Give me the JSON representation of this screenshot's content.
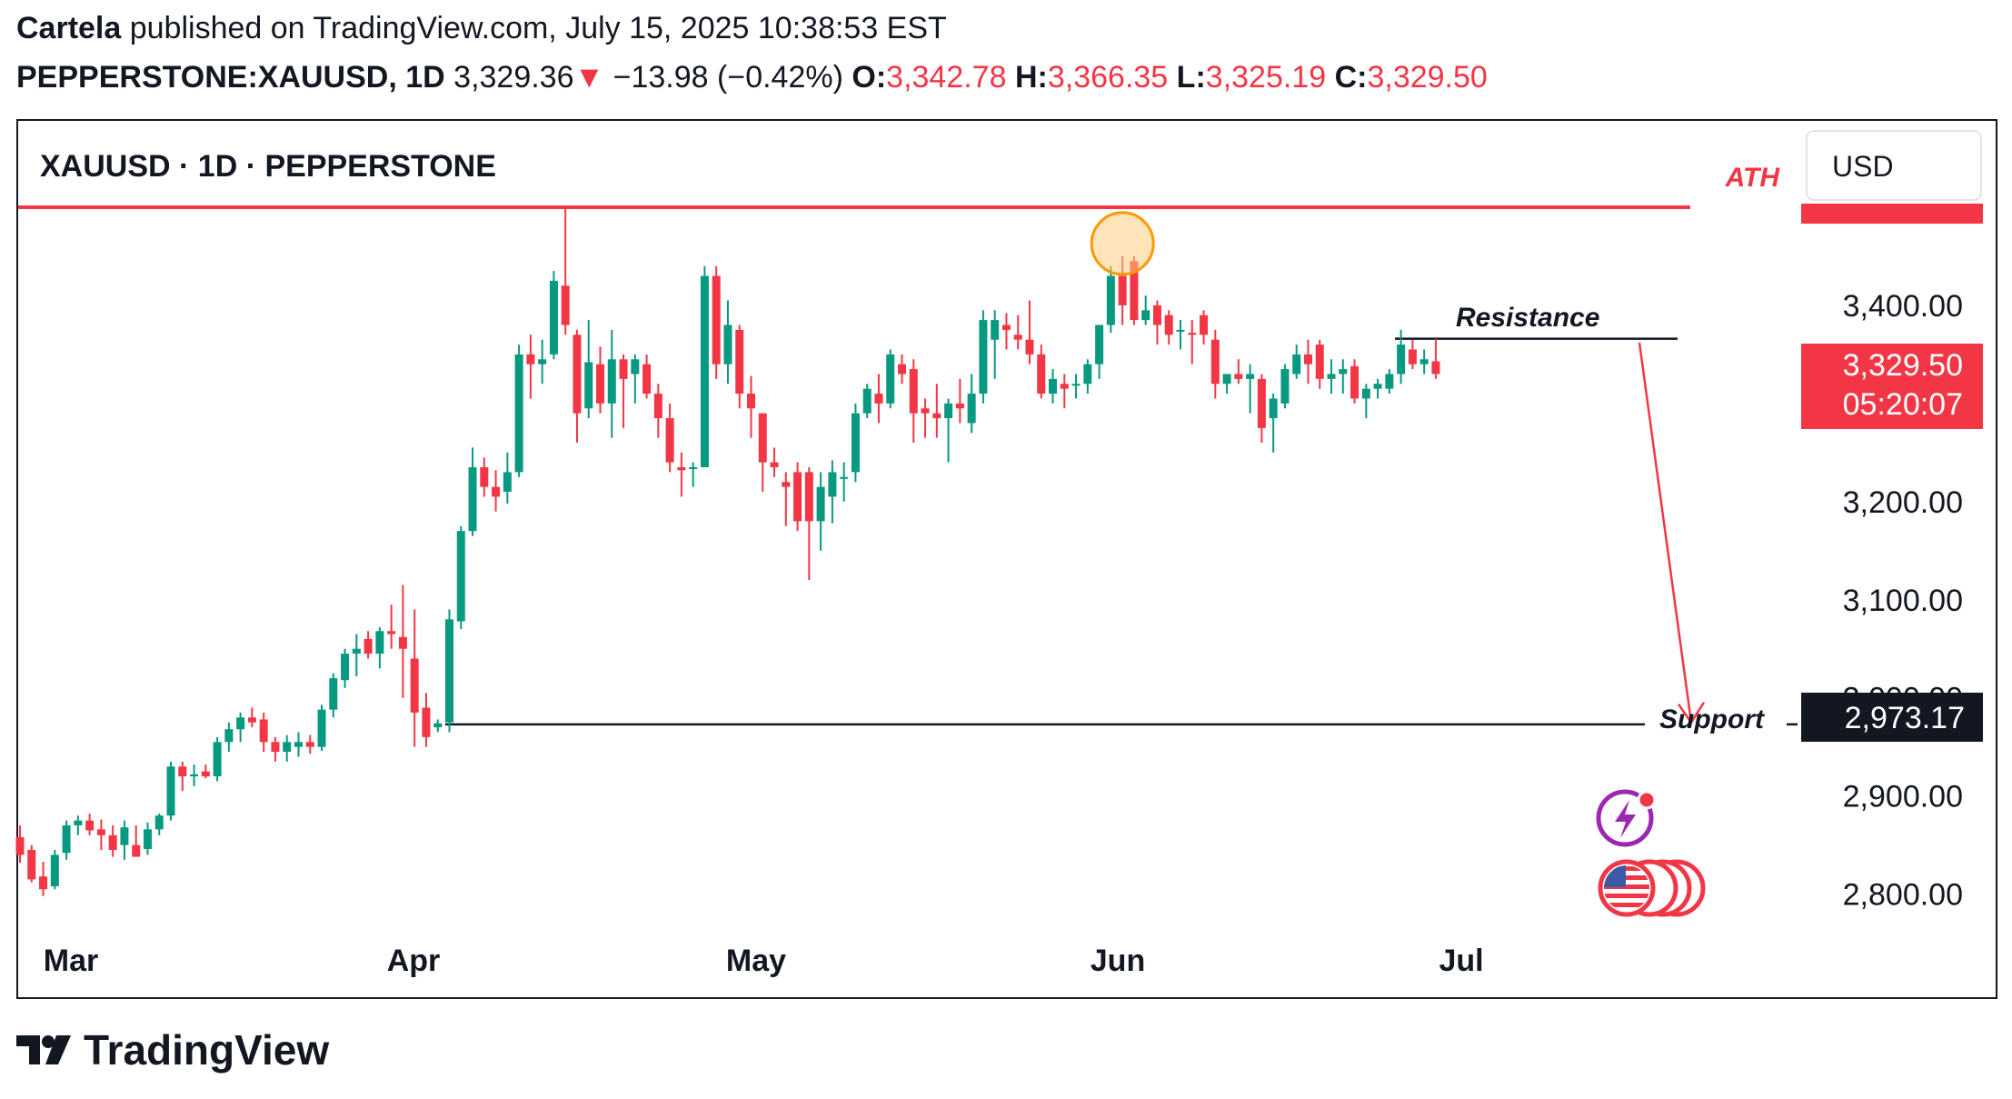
{
  "header": {
    "author": "Cartela",
    "published_text": "published on TradingView.com, July 15, 2025 10:38:53 EST",
    "symbol_tf": "PEPPERSTONE:XAUUSD, 1D",
    "last_price": "3,329.36",
    "change_arrow": "▼",
    "change": "−13.98 (−0.42%)",
    "o_label": "O:",
    "o_value": "3,342.78",
    "h_label": "H:",
    "h_value": "3,366.35",
    "l_label": "L:",
    "l_value": "3,325.19",
    "c_label": "C:",
    "c_value": "3,329.50"
  },
  "chart_title": "XAUUSD · 1D · PEPPERSTONE",
  "currency_button": "USD",
  "price_label": {
    "value": "3,329.50",
    "countdown": "05:20:07"
  },
  "support_price_label": "2,973.17",
  "annotations": {
    "ath": "ATH",
    "resistance": "Resistance",
    "support": "Support"
  },
  "colors": {
    "up": "#089981",
    "down": "#f23645",
    "text": "#131722"
  },
  "icons": [
    "lightning-icon",
    "us-flag-icon"
  ],
  "logo_text": "TradingView",
  "chart_data": {
    "type": "candlestick",
    "title": "XAUUSD · 1D · PEPPERSTONE",
    "ylim": [
      2740,
      3510
    ],
    "y_ticks": [
      "2,800.00",
      "2,900.00",
      "3,000.00",
      "3,100.00",
      "3,200.00",
      "3,400.00"
    ],
    "x_labels": [
      "Mar",
      "Apr",
      "May",
      "Jun",
      "Jul"
    ],
    "levels": {
      "ath": 3500,
      "resistance": 3366,
      "support": 2973
    },
    "projection": {
      "from": 3362,
      "to": 2975
    },
    "candles": [
      [
        2858,
        2870,
        2832,
        2840
      ],
      [
        2845,
        2850,
        2812,
        2815
      ],
      [
        2818,
        2833,
        2798,
        2805
      ],
      [
        2808,
        2845,
        2805,
        2840
      ],
      [
        2842,
        2875,
        2835,
        2870
      ],
      [
        2870,
        2880,
        2860,
        2875
      ],
      [
        2875,
        2882,
        2860,
        2865
      ],
      [
        2866,
        2876,
        2845,
        2860
      ],
      [
        2860,
        2870,
        2838,
        2845
      ],
      [
        2850,
        2875,
        2835,
        2868
      ],
      [
        2850,
        2870,
        2840,
        2838
      ],
      [
        2846,
        2873,
        2840,
        2866
      ],
      [
        2866,
        2882,
        2860,
        2880
      ],
      [
        2880,
        2935,
        2875,
        2930
      ],
      [
        2930,
        2935,
        2905,
        2920
      ],
      [
        2920,
        2932,
        2910,
        2922
      ],
      [
        2925,
        2932,
        2918,
        2920
      ],
      [
        2920,
        2960,
        2915,
        2955
      ],
      [
        2955,
        2975,
        2945,
        2968
      ],
      [
        2968,
        2985,
        2955,
        2980
      ],
      [
        2980,
        2990,
        2970,
        2975
      ],
      [
        2978,
        2985,
        2945,
        2955
      ],
      [
        2955,
        2960,
        2935,
        2945
      ],
      [
        2945,
        2962,
        2935,
        2955
      ],
      [
        2950,
        2965,
        2940,
        2955
      ],
      [
        2955,
        2962,
        2943,
        2950
      ],
      [
        2950,
        2993,
        2946,
        2988
      ],
      [
        2988,
        3025,
        2980,
        3020
      ],
      [
        3018,
        3050,
        3010,
        3045
      ],
      [
        3045,
        3065,
        3022,
        3050
      ],
      [
        3060,
        3068,
        3040,
        3045
      ],
      [
        3045,
        3072,
        3030,
        3068
      ],
      [
        3068,
        3095,
        3050,
        3065
      ],
      [
        3062,
        3115,
        3000,
        3050
      ],
      [
        3040,
        3090,
        2950,
        2985
      ],
      [
        2990,
        3005,
        2950,
        2960
      ],
      [
        2970,
        2978,
        2965,
        2974
      ],
      [
        2975,
        3090,
        2965,
        3080
      ],
      [
        3078,
        3175,
        3070,
        3170
      ],
      [
        3170,
        3255,
        3165,
        3235
      ],
      [
        3235,
        3245,
        3205,
        3215
      ],
      [
        3215,
        3232,
        3190,
        3205
      ],
      [
        3210,
        3250,
        3198,
        3230
      ],
      [
        3230,
        3360,
        3225,
        3350
      ],
      [
        3350,
        3370,
        3305,
        3340
      ],
      [
        3340,
        3365,
        3320,
        3345
      ],
      [
        3350,
        3435,
        3345,
        3425
      ],
      [
        3420,
        3500,
        3370,
        3380
      ],
      [
        3370,
        3375,
        3260,
        3290
      ],
      [
        3295,
        3385,
        3285,
        3342
      ],
      [
        3340,
        3358,
        3290,
        3300
      ],
      [
        3300,
        3375,
        3265,
        3345
      ],
      [
        3345,
        3350,
        3275,
        3325
      ],
      [
        3330,
        3350,
        3300,
        3345
      ],
      [
        3340,
        3350,
        3305,
        3310
      ],
      [
        3310,
        3320,
        3265,
        3285
      ],
      [
        3285,
        3300,
        3230,
        3240
      ],
      [
        3235,
        3250,
        3205,
        3232
      ],
      [
        3235,
        3240,
        3215,
        3235
      ],
      [
        3235,
        3440,
        3235,
        3430
      ],
      [
        3430,
        3440,
        3325,
        3340
      ],
      [
        3340,
        3405,
        3320,
        3380
      ],
      [
        3375,
        3380,
        3295,
        3310
      ],
      [
        3310,
        3328,
        3265,
        3295
      ],
      [
        3290,
        3290,
        3210,
        3240
      ],
      [
        3240,
        3255,
        3225,
        3235
      ],
      [
        3220,
        3230,
        3175,
        3215
      ],
      [
        3230,
        3240,
        3170,
        3180
      ],
      [
        3230,
        3235,
        3120,
        3180
      ],
      [
        3180,
        3230,
        3150,
        3215
      ],
      [
        3205,
        3242,
        3178,
        3230
      ],
      [
        3225,
        3240,
        3200,
        3225
      ],
      [
        3230,
        3300,
        3220,
        3290
      ],
      [
        3290,
        3320,
        3285,
        3315
      ],
      [
        3310,
        3330,
        3280,
        3300
      ],
      [
        3300,
        3355,
        3295,
        3350
      ],
      [
        3340,
        3350,
        3320,
        3330
      ],
      [
        3335,
        3345,
        3260,
        3290
      ],
      [
        3295,
        3305,
        3265,
        3290
      ],
      [
        3290,
        3320,
        3265,
        3285
      ],
      [
        3285,
        3305,
        3240,
        3300
      ],
      [
        3300,
        3325,
        3280,
        3295
      ],
      [
        3280,
        3330,
        3270,
        3310
      ],
      [
        3310,
        3395,
        3300,
        3385
      ],
      [
        3365,
        3395,
        3325,
        3385
      ],
      [
        3380,
        3392,
        3355,
        3375
      ],
      [
        3370,
        3390,
        3355,
        3365
      ],
      [
        3365,
        3405,
        3340,
        3350
      ],
      [
        3350,
        3360,
        3305,
        3310
      ],
      [
        3310,
        3335,
        3300,
        3325
      ],
      [
        3320,
        3330,
        3295,
        3315
      ],
      [
        3320,
        3330,
        3305,
        3320
      ],
      [
        3320,
        3345,
        3310,
        3340
      ],
      [
        3340,
        3375,
        3325,
        3380
      ],
      [
        3380,
        3440,
        3372,
        3430
      ],
      [
        3430,
        3450,
        3380,
        3400
      ],
      [
        3445,
        3450,
        3380,
        3385
      ],
      [
        3385,
        3410,
        3380,
        3395
      ],
      [
        3400,
        3405,
        3360,
        3380
      ],
      [
        3390,
        3395,
        3360,
        3370
      ],
      [
        3375,
        3385,
        3355,
        3375
      ],
      [
        3372,
        3385,
        3340,
        3370
      ],
      [
        3390,
        3395,
        3360,
        3370
      ],
      [
        3365,
        3375,
        3305,
        3320
      ],
      [
        3320,
        3330,
        3310,
        3330
      ],
      [
        3330,
        3345,
        3320,
        3325
      ],
      [
        3325,
        3340,
        3290,
        3330
      ],
      [
        3325,
        3330,
        3260,
        3275
      ],
      [
        3285,
        3310,
        3250,
        3305
      ],
      [
        3300,
        3340,
        3295,
        3335
      ],
      [
        3330,
        3360,
        3325,
        3350
      ],
      [
        3350,
        3365,
        3320,
        3340
      ],
      [
        3360,
        3365,
        3315,
        3325
      ],
      [
        3325,
        3345,
        3310,
        3330
      ],
      [
        3330,
        3345,
        3310,
        3335
      ],
      [
        3338,
        3345,
        3300,
        3305
      ],
      [
        3305,
        3320,
        3285,
        3315
      ],
      [
        3315,
        3325,
        3305,
        3320
      ],
      [
        3315,
        3335,
        3310,
        3330
      ],
      [
        3330,
        3375,
        3320,
        3360
      ],
      [
        3355,
        3365,
        3335,
        3340
      ],
      [
        3340,
        3355,
        3330,
        3345
      ],
      [
        3343,
        3366,
        3325,
        3330
      ]
    ]
  }
}
